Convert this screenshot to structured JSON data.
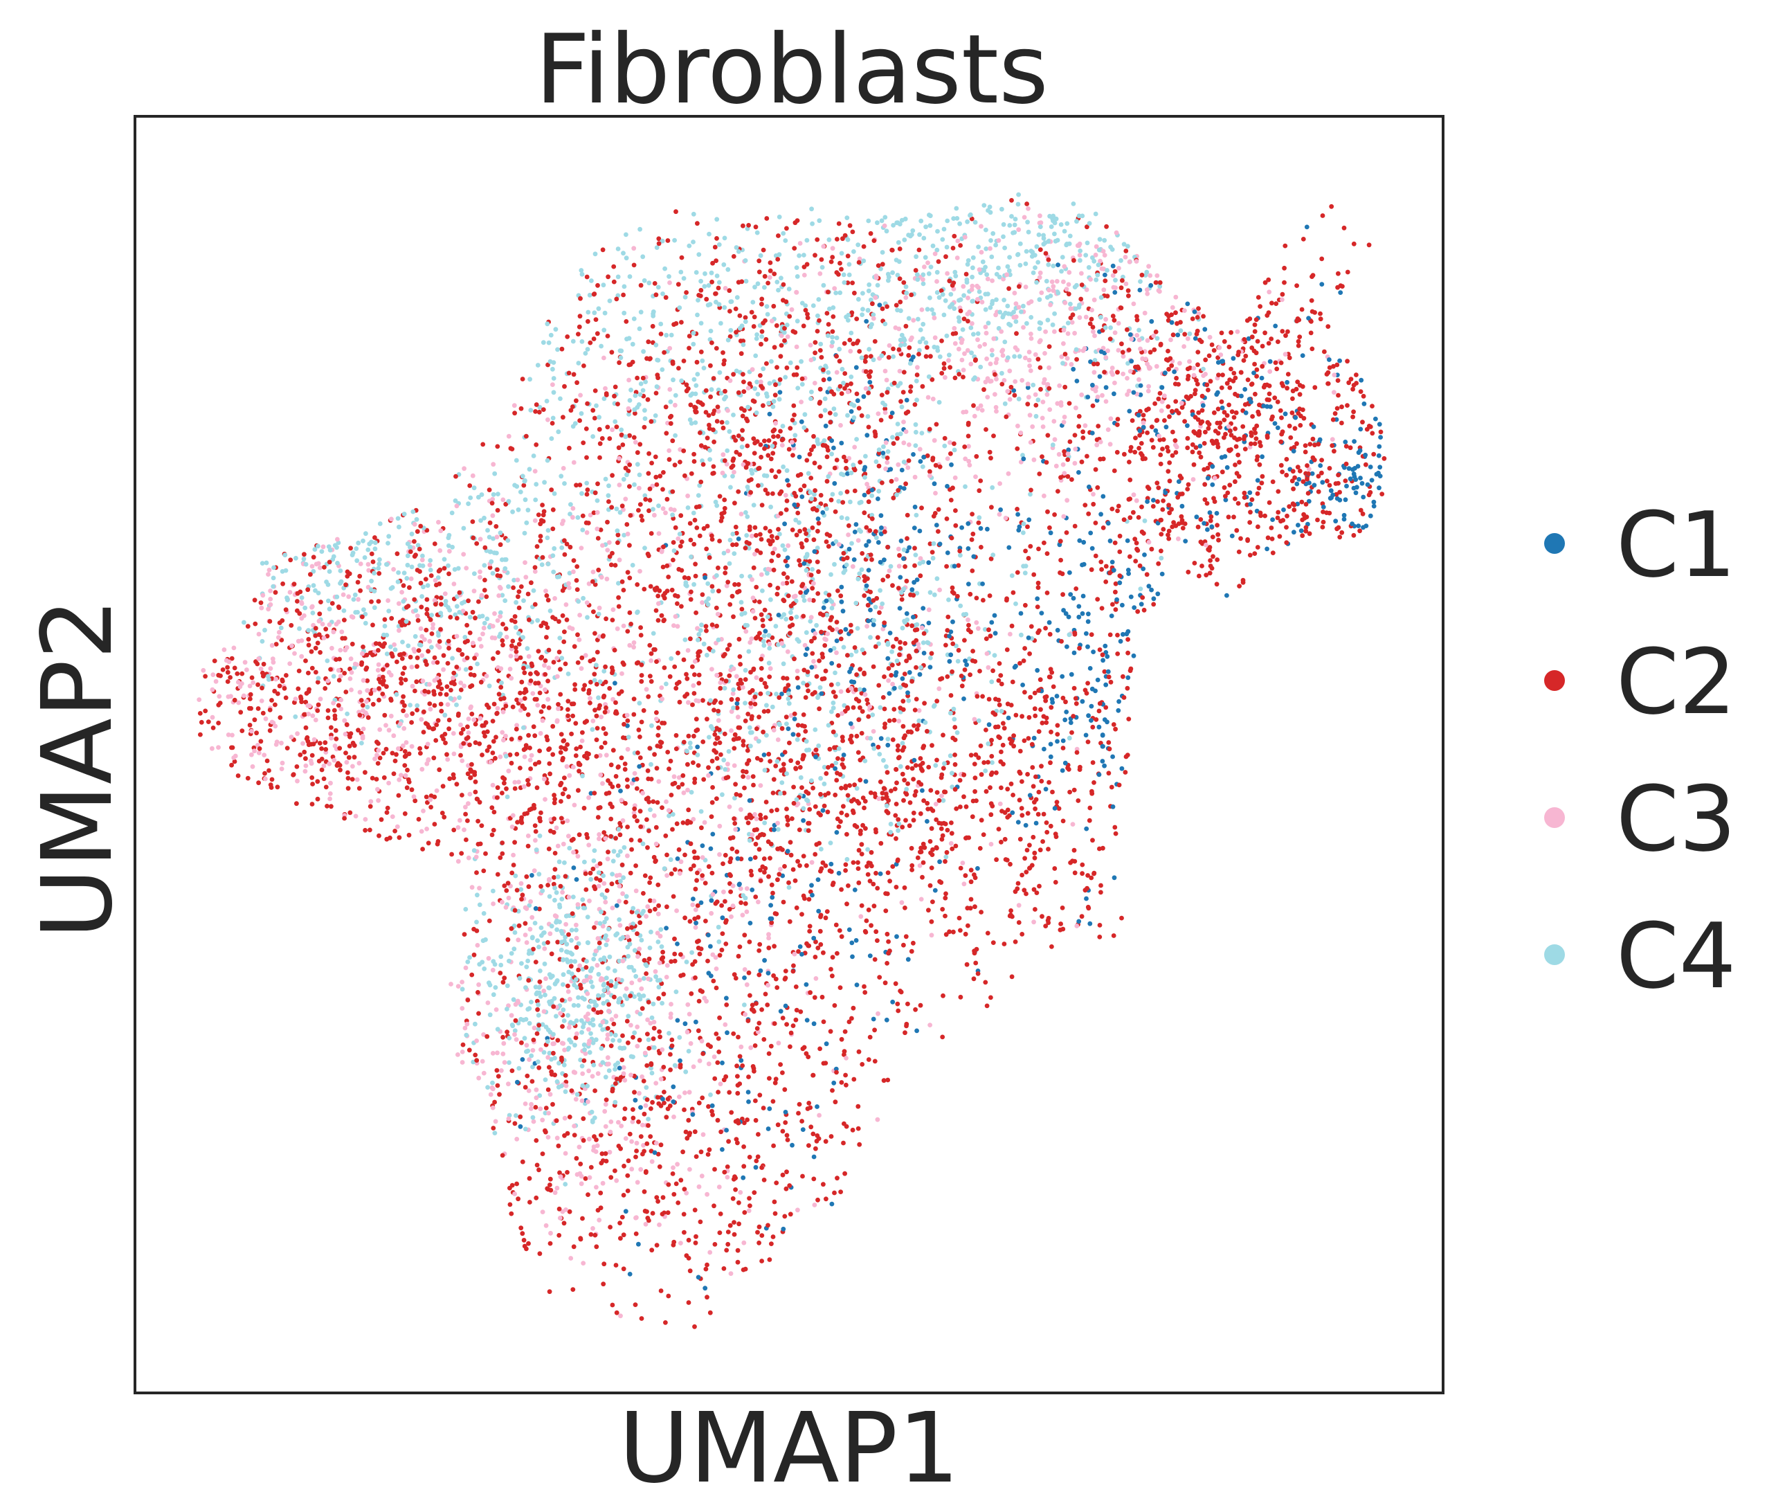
{
  "chart_data": {
    "type": "scatter",
    "title": "Fibroblasts",
    "xlabel": "UMAP1",
    "ylabel": "UMAP2",
    "xlim": [
      0,
      10
    ],
    "ylim": [
      0,
      10
    ],
    "ticks": "none",
    "grid": false,
    "legend": {
      "placement": "right",
      "entries": [
        {
          "name": "C1",
          "color": "#1f77b4"
        },
        {
          "name": "C2",
          "color": "#d62728"
        },
        {
          "name": "C3",
          "color": "#f7b6d2"
        },
        {
          "name": "C4",
          "color": "#9edae5"
        }
      ]
    },
    "series": [
      {
        "name": "C1",
        "color": "#1f77b4",
        "approx_share": 0.08,
        "regions": [
          {
            "x": 8.3,
            "y": 7.5,
            "sx": 0.7,
            "sy": 0.9
          },
          {
            "x": 5.7,
            "y": 6.5,
            "sx": 0.5,
            "sy": 0.8
          },
          {
            "x": 5.0,
            "y": 3.2,
            "sx": 0.9,
            "sy": 1.3
          },
          {
            "x": 7.4,
            "y": 5.5,
            "sx": 0.35,
            "sy": 0.7
          },
          {
            "x": 9.5,
            "y": 7.0,
            "sx": 0.35,
            "sy": 0.25
          }
        ]
      },
      {
        "name": "C2",
        "color": "#d62728",
        "approx_share": 0.52,
        "regions": [
          {
            "x": 2.0,
            "y": 5.4,
            "sx": 1.2,
            "sy": 0.7
          },
          {
            "x": 6.0,
            "y": 4.8,
            "sx": 1.3,
            "sy": 0.8
          },
          {
            "x": 4.3,
            "y": 2.5,
            "sx": 1.0,
            "sy": 1.4
          },
          {
            "x": 8.4,
            "y": 7.5,
            "sx": 0.8,
            "sy": 0.9
          },
          {
            "x": 4.8,
            "y": 7.5,
            "sx": 1.0,
            "sy": 1.2
          }
        ]
      },
      {
        "name": "C3",
        "color": "#f7b6d2",
        "approx_share": 0.18,
        "regions": [
          {
            "x": 1.5,
            "y": 5.5,
            "sx": 0.9,
            "sy": 0.7
          },
          {
            "x": 4.3,
            "y": 6.0,
            "sx": 1.4,
            "sy": 1.3
          },
          {
            "x": 3.4,
            "y": 2.8,
            "sx": 0.8,
            "sy": 1.0
          },
          {
            "x": 7.0,
            "y": 8.3,
            "sx": 0.9,
            "sy": 0.6
          }
        ]
      },
      {
        "name": "C4",
        "color": "#9edae5",
        "approx_share": 0.22,
        "regions": [
          {
            "x": 4.4,
            "y": 8.2,
            "sx": 1.1,
            "sy": 0.7
          },
          {
            "x": 2.0,
            "y": 6.5,
            "sx": 0.8,
            "sy": 0.5
          },
          {
            "x": 5.2,
            "y": 6.0,
            "sx": 0.8,
            "sy": 0.9
          },
          {
            "x": 6.6,
            "y": 8.8,
            "sx": 0.8,
            "sy": 0.5
          },
          {
            "x": 3.4,
            "y": 3.2,
            "sx": 0.4,
            "sy": 0.5
          }
        ]
      }
    ]
  }
}
